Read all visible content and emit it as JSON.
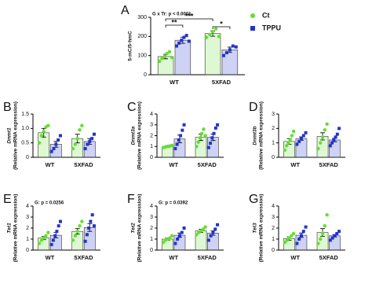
{
  "chart_data": [
    {
      "type": "bar",
      "panel": "A",
      "ylabel": "5-mC/5-hmC",
      "annotation": "G x Tr: p < 0.0001",
      "categories": [
        "WT",
        "5XFAD"
      ],
      "ylim": [
        0,
        300
      ],
      "yticks": [
        0,
        100,
        200,
        300
      ],
      "significance": [
        "**",
        "***",
        "*"
      ],
      "series": [
        {
          "name": "Ct",
          "color": "#66dd33",
          "values": [
            95,
            215
          ],
          "errors": [
            12,
            14
          ],
          "points": [
            [
              70,
              85,
              95,
              110,
              120,
              90
            ],
            [
              195,
              210,
              225,
              240,
              200
            ]
          ]
        },
        {
          "name": "TPPU",
          "color": "#2233cc",
          "values": [
            180,
            130
          ],
          "errors": [
            16,
            14
          ],
          "points": [
            [
              150,
              165,
              180,
              195,
              205,
              175
            ],
            [
              100,
              115,
              130,
              150,
              145
            ]
          ]
        }
      ]
    },
    {
      "type": "bar",
      "panel": "B",
      "ylabel": "Dnmt1",
      "ylabel2": "(Relative mRNA expression)",
      "categories": [
        "WT",
        "5XFAD"
      ],
      "ylim": [
        0,
        1.5
      ],
      "yticks": [
        0,
        0.5,
        {
          "value": 1,
          "label": "1.0"
        },
        1.5
      ],
      "series": [
        {
          "color": "#66dd33",
          "values": [
            0.85,
            0.65
          ],
          "errors": [
            0.15,
            0.15
          ],
          "points": [
            [
              0.5,
              0.75,
              0.9,
              1.05,
              1.1
            ],
            [
              0.3,
              0.45,
              0.65,
              0.95,
              1.1
            ]
          ]
        },
        {
          "color": "#2233cc",
          "values": [
            0.45,
            0.55
          ],
          "errors": [
            0.1,
            0.1
          ],
          "points": [
            [
              0.2,
              0.3,
              0.45,
              0.6,
              0.75
            ],
            [
              0.3,
              0.45,
              0.55,
              0.65,
              0.8
            ]
          ]
        }
      ]
    },
    {
      "type": "bar",
      "panel": "C",
      "ylabel": "Dnmt3a",
      "ylabel2": "(Relative mRNA expression)",
      "categories": [
        "WT",
        "5XFAD"
      ],
      "ylim": [
        0,
        4
      ],
      "yticks": [
        0,
        1,
        2,
        3,
        4
      ],
      "series": [
        {
          "color": "#66dd33",
          "values": [
            1.0,
            1.85
          ],
          "errors": [
            0.08,
            0.3
          ],
          "points": [
            [
              0.9,
              0.95,
              1.0,
              1.05,
              1.1
            ],
            [
              1.0,
              1.4,
              1.8,
              2.2,
              2.6,
              2.0
            ]
          ]
        },
        {
          "color": "#2233cc",
          "values": [
            1.7,
            1.85
          ],
          "errors": [
            0.35,
            0.3
          ],
          "points": [
            [
              0.8,
              1.2,
              1.6,
              2.0,
              2.5,
              3.0
            ],
            [
              0.9,
              1.3,
              1.8,
              2.2,
              2.7,
              3.0
            ]
          ]
        }
      ]
    },
    {
      "type": "bar",
      "panel": "D",
      "ylabel": "Dnmt3b",
      "ylabel2": "(Relative mRNA expression)",
      "categories": [
        "WT",
        "5XFAD"
      ],
      "ylim": [
        0,
        3
      ],
      "yticks": [
        0,
        1,
        2,
        3
      ],
      "series": [
        {
          "color": "#66dd33",
          "values": [
            1.1,
            1.45
          ],
          "errors": [
            0.2,
            0.25
          ],
          "points": [
            [
              0.5,
              0.8,
              1.0,
              1.2,
              1.5,
              1.8
            ],
            [
              0.6,
              1.0,
              1.4,
              1.9,
              2.3
            ]
          ]
        },
        {
          "color": "#2233cc",
          "values": [
            1.3,
            1.2
          ],
          "errors": [
            0.12,
            0.12
          ],
          "points": [
            [
              0.9,
              1.1,
              1.3,
              1.5,
              1.7
            ],
            [
              0.8,
              1.0,
              1.2,
              1.4,
              1.6,
              2.0
            ]
          ]
        }
      ]
    },
    {
      "type": "bar",
      "panel": "E",
      "ylabel": "Tet1",
      "ylabel2": "(Relative mRNA expression)",
      "annotation": "G: p = 0.0256",
      "categories": [
        "WT",
        "5XFAD"
      ],
      "ylim": [
        0,
        4
      ],
      "yticks": [
        0,
        1,
        2,
        3,
        4
      ],
      "series": [
        {
          "color": "#66dd33",
          "values": [
            1.1,
            1.7
          ],
          "errors": [
            0.15,
            0.25
          ],
          "points": [
            [
              0.6,
              0.9,
              1.1,
              1.3,
              1.6
            ],
            [
              0.9,
              1.3,
              1.7,
              2.2,
              2.6
            ]
          ]
        },
        {
          "color": "#2233cc",
          "values": [
            1.35,
            2.05
          ],
          "errors": [
            0.25,
            0.35
          ],
          "points": [
            [
              0.5,
              0.9,
              1.3,
              1.7,
              2.2,
              2.6
            ],
            [
              0.8,
              1.4,
              2.0,
              2.6,
              3.2,
              2.2
            ]
          ]
        }
      ]
    },
    {
      "type": "bar",
      "panel": "F",
      "ylabel": "Tet2",
      "ylabel2": "(Relative mRNA expression)",
      "annotation": "G: p = 0.0392",
      "categories": [
        "WT",
        "5XFAD"
      ],
      "ylim": [
        0,
        4
      ],
      "yticks": [
        0,
        1,
        2,
        3,
        4
      ],
      "series": [
        {
          "color": "#66dd33",
          "values": [
            1.0,
            1.75
          ],
          "errors": [
            0.1,
            0.15
          ],
          "points": [
            [
              0.7,
              0.9,
              1.0,
              1.1,
              1.3
            ],
            [
              1.4,
              1.6,
              1.75,
              1.9,
              2.1
            ]
          ]
        },
        {
          "color": "#2233cc",
          "values": [
            1.35,
            1.55
          ],
          "errors": [
            0.2,
            0.2
          ],
          "points": [
            [
              0.6,
              1.0,
              1.3,
              1.6,
              2.0
            ],
            [
              0.9,
              1.3,
              1.6,
              1.9,
              2.3
            ]
          ]
        }
      ]
    },
    {
      "type": "bar",
      "panel": "G",
      "ylabel": "Tet3",
      "ylabel2": "(Relative mRNA expression)",
      "categories": [
        "WT",
        "5XFAD"
      ],
      "ylim": [
        0,
        4
      ],
      "yticks": [
        0,
        1,
        2,
        3,
        4
      ],
      "series": [
        {
          "color": "#66dd33",
          "values": [
            1.05,
            1.6
          ],
          "errors": [
            0.15,
            0.35
          ],
          "points": [
            [
              0.7,
              0.9,
              1.1,
              1.3,
              1.5
            ],
            [
              0.6,
              1.0,
              1.5,
              2.2,
              3.2
            ]
          ]
        },
        {
          "color": "#2233cc",
          "values": [
            1.35,
            1.3
          ],
          "errors": [
            0.2,
            0.12
          ],
          "points": [
            [
              0.6,
              1.0,
              1.3,
              1.7,
              2.1
            ],
            [
              0.9,
              1.1,
              1.3,
              1.5,
              1.7
            ]
          ]
        }
      ]
    }
  ]
}
